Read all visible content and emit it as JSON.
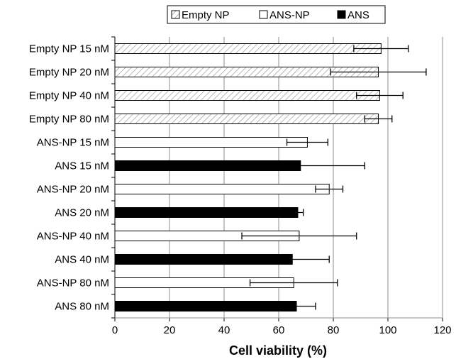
{
  "chart_data": {
    "type": "bar",
    "orientation": "horizontal",
    "title": "",
    "xlabel": "Cell viability (%)",
    "ylabel": "",
    "xlim": [
      0,
      120
    ],
    "xticks": [
      0,
      20,
      40,
      60,
      80,
      100,
      120
    ],
    "grid": "vertical",
    "legend_position": "top",
    "legend": [
      {
        "name": "Empty NP",
        "pattern": "hatched",
        "color": "#ffffff"
      },
      {
        "name": "ANS-NP",
        "pattern": "none",
        "color": "#ffffff"
      },
      {
        "name": "ANS",
        "pattern": "none",
        "color": "#000000"
      }
    ],
    "bars": [
      {
        "label": "Empty NP 15 nM",
        "series": "Empty NP",
        "value": 97.5,
        "error": 10
      },
      {
        "label": "Empty NP 20 nM",
        "series": "Empty NP",
        "value": 96.5,
        "error": 17.5
      },
      {
        "label": "Empty NP 40 nM",
        "series": "Empty NP",
        "value": 97,
        "error": 8.5
      },
      {
        "label": "Empty NP 80 nM",
        "series": "Empty NP",
        "value": 96.5,
        "error": 5
      },
      {
        "label": "ANS-NP 15 nM",
        "series": "ANS-NP",
        "value": 70.5,
        "error": 7.5
      },
      {
        "label": "ANS 15 nM",
        "series": "ANS",
        "value": 68,
        "error": 23.5
      },
      {
        "label": "ANS-NP 20 nM",
        "series": "ANS-NP",
        "value": 78.5,
        "error": 5
      },
      {
        "label": "ANS 20 nM",
        "series": "ANS",
        "value": 67,
        "error": 2
      },
      {
        "label": "ANS-NP 40 nM",
        "series": "ANS-NP",
        "value": 67.5,
        "error": 21
      },
      {
        "label": "ANS 40 nM",
        "series": "ANS",
        "value": 65,
        "error": 13.5
      },
      {
        "label": "ANS-NP 80 nM",
        "series": "ANS-NP",
        "value": 65.5,
        "error": 16
      },
      {
        "label": "ANS 80 nM",
        "series": "ANS",
        "value": 66.5,
        "error": 7
      }
    ]
  }
}
